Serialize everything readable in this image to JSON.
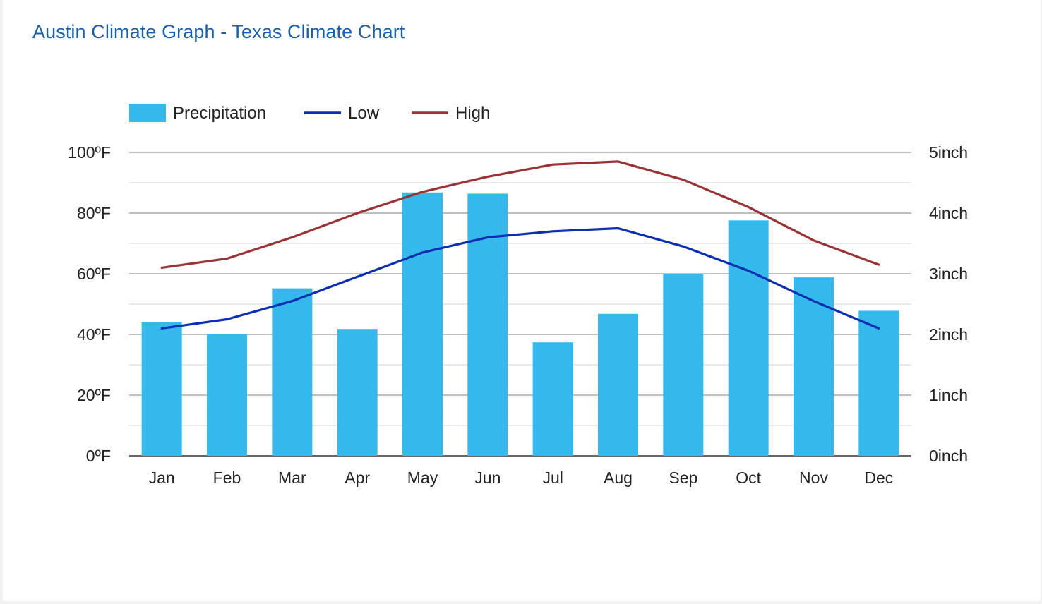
{
  "page": {
    "title": "Austin Climate Graph - Texas Climate Chart"
  },
  "colors": {
    "precipitation": "#35b8ec",
    "low": "#0b2fb0",
    "high": "#9a3336",
    "title": "#1a5fa8",
    "grid_major": "#999999",
    "grid_minor": "#dddddd"
  },
  "chart_data": {
    "type": "bar",
    "title": "",
    "categories": [
      "Jan",
      "Feb",
      "Mar",
      "Apr",
      "May",
      "Jun",
      "Jul",
      "Aug",
      "Sep",
      "Oct",
      "Nov",
      "Dec"
    ],
    "series": [
      {
        "name": "Precipitation",
        "type": "bar",
        "axis": "right",
        "values": [
          2.2,
          2.0,
          2.76,
          2.09,
          4.34,
          4.32,
          1.87,
          2.34,
          3.0,
          3.88,
          2.94,
          2.39
        ]
      },
      {
        "name": "Low",
        "type": "line",
        "axis": "left",
        "values": [
          42,
          45,
          51,
          59,
          67,
          72,
          74,
          75,
          69,
          61,
          51,
          42
        ]
      },
      {
        "name": "High",
        "type": "line",
        "axis": "left",
        "values": [
          62,
          65,
          72,
          80,
          87,
          92,
          96,
          97,
          91,
          82,
          71,
          63
        ]
      }
    ],
    "y_left": {
      "min": 0,
      "max": 100,
      "ticks": [
        0,
        20,
        40,
        60,
        80,
        100
      ],
      "tick_labels": [
        "0ºF",
        "20ºF",
        "40ºF",
        "60ºF",
        "80ºF",
        "100ºF"
      ]
    },
    "y_right": {
      "min": 0,
      "max": 5,
      "ticks": [
        0,
        1,
        2,
        3,
        4,
        5
      ],
      "tick_labels": [
        "0inch",
        "1inch",
        "2inch",
        "3inch",
        "4inch",
        "5inch"
      ]
    },
    "xlabel": "",
    "ylabel": "",
    "grid": true,
    "legend": "top-left"
  }
}
